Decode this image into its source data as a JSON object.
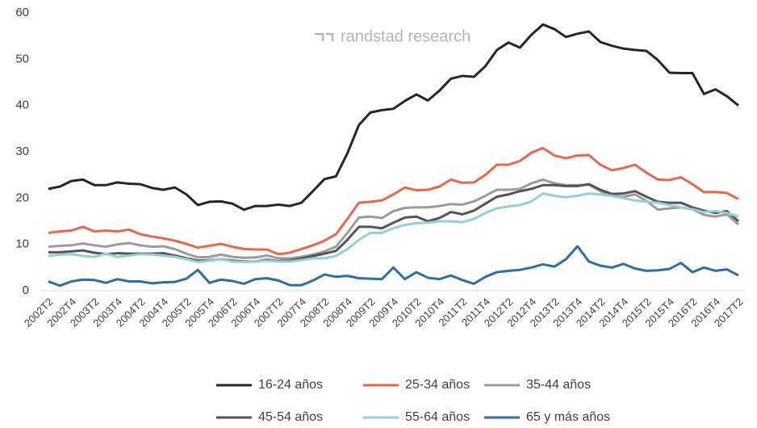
{
  "chart_data": {
    "type": "line",
    "annotation": "randstad research",
    "categories": [
      "2002T2",
      null,
      "2002T4",
      null,
      "2003T2",
      null,
      "2003T4",
      null,
      "2004T2",
      null,
      "2004T4",
      null,
      "2005T2",
      null,
      "2005T4",
      null,
      "2006T2",
      null,
      "2006T4",
      null,
      "2007T2",
      null,
      "2007T4",
      null,
      "2008T2",
      null,
      "2008T4",
      null,
      "2009T2",
      null,
      "2009T4",
      null,
      "2010T2",
      null,
      "2010T4",
      null,
      "2011T2",
      null,
      "2011T4",
      null,
      "2012T2",
      null,
      "2012T4",
      null,
      "2013T2",
      null,
      "2013T4",
      null,
      "2014T2",
      null,
      "2014T4",
      null,
      "2015T2",
      null,
      "2015T4",
      null,
      "2016T2",
      null,
      "2016T4",
      null,
      "2017T2"
    ],
    "ylim": [
      0,
      60
    ],
    "yticks": [
      0,
      10,
      20,
      30,
      40,
      50,
      60
    ],
    "grid": false,
    "legend": "bottom",
    "series": [
      {
        "name": "16-24 años",
        "color": "#262626",
        "values": [
          22,
          22.5,
          23.7,
          24,
          22.8,
          22.8,
          23.4,
          23.1,
          23,
          22.2,
          21.8,
          22.3,
          20.8,
          18.5,
          19.2,
          19.3,
          18.8,
          17.5,
          18.3,
          18.3,
          18.6,
          18.3,
          19,
          21.5,
          24.1,
          24.7,
          29.7,
          35.8,
          38.5,
          39,
          39.3,
          41,
          42.4,
          41.1,
          43.2,
          45.8,
          46.4,
          46.2,
          48.5,
          52,
          53.6,
          52.5,
          55.3,
          57.5,
          56.5,
          54.8,
          55.5,
          56,
          53.7,
          52.9,
          52.3,
          52,
          51.8,
          49.8,
          47.1,
          47,
          47,
          42.5,
          43.5,
          42,
          40
        ]
      },
      {
        "name": "25-34 años",
        "color": "#e8664a",
        "values": [
          12.5,
          12.8,
          13,
          13.8,
          12.8,
          13,
          12.8,
          13.2,
          12.2,
          11.7,
          11.3,
          10.8,
          10.1,
          9.3,
          9.7,
          10.1,
          9.5,
          9,
          8.9,
          8.9,
          7.9,
          8.2,
          9,
          9.8,
          10.8,
          12.2,
          15.5,
          19,
          19.2,
          19.5,
          20.8,
          22.3,
          21.7,
          21.8,
          22.5,
          24,
          23.3,
          23.4,
          25,
          27.2,
          27.2,
          28,
          29.8,
          30.8,
          29.2,
          28.6,
          29.2,
          29.3,
          27.2,
          26,
          26.5,
          27.2,
          25.5,
          24,
          23.9,
          24.5,
          23,
          21.3,
          21.3,
          21.1,
          19.8
        ]
      },
      {
        "name": "35-44 años",
        "color": "#9b9b9b",
        "values": [
          9.5,
          9.7,
          9.8,
          10.2,
          9.8,
          9.5,
          10,
          10.3,
          9.8,
          9.5,
          9.6,
          9,
          8,
          7.2,
          7.3,
          7.8,
          7.3,
          7.1,
          7.2,
          7.6,
          7,
          7,
          7.3,
          7.8,
          8.5,
          9.5,
          12.5,
          15.8,
          16,
          15.7,
          17.2,
          17.9,
          18,
          18,
          18.3,
          18.7,
          18.6,
          19.3,
          20.5,
          21.8,
          21.8,
          22,
          23.2,
          24,
          23.2,
          22.8,
          22.8,
          22.9,
          21.5,
          20.5,
          20.3,
          20.8,
          19.4,
          17.5,
          17.8,
          18,
          17.6,
          16.4,
          16,
          16.5,
          14.3
        ]
      },
      {
        "name": "45-54 años",
        "color": "#555555",
        "values": [
          8.3,
          8.3,
          8.5,
          8.7,
          8.2,
          7.9,
          8.1,
          8,
          8,
          8,
          8.1,
          7.6,
          7,
          6.5,
          6.6,
          6.8,
          6.5,
          6.3,
          6.3,
          6.7,
          6.4,
          6.5,
          7,
          7.5,
          8,
          8.6,
          11,
          13.8,
          13.8,
          13.5,
          14.7,
          15.8,
          16,
          15,
          15.7,
          17,
          16.5,
          17.3,
          18.8,
          20.3,
          20.8,
          21.5,
          22,
          22.8,
          22.8,
          22.6,
          22.6,
          23,
          21.8,
          20.9,
          21,
          21.5,
          20.3,
          19.2,
          19,
          19,
          18,
          17.3,
          16.8,
          17.2,
          15
        ]
      },
      {
        "name": "55-64 años",
        "color": "#92d0d9",
        "values": [
          7.5,
          7.8,
          7.9,
          7.5,
          7.3,
          8,
          7.3,
          7.6,
          7.9,
          7.8,
          7.6,
          7.3,
          6.8,
          6.2,
          6.5,
          6.8,
          6.3,
          6.2,
          6.3,
          6.5,
          6.3,
          6.3,
          6.6,
          7,
          7,
          7.5,
          9,
          11,
          12.5,
          12.5,
          13.5,
          14.2,
          14.6,
          14.7,
          15,
          15,
          14.8,
          15.5,
          16.8,
          17.8,
          18.2,
          18.5,
          19.3,
          21,
          20.5,
          20.2,
          20.5,
          21,
          20.8,
          20.5,
          20,
          19.5,
          19.2,
          19,
          18.5,
          18,
          17.6,
          17,
          17.2,
          16.8,
          16
        ]
      },
      {
        "name": "65 y más años",
        "color": "#2f6da6",
        "values": [
          2,
          1.1,
          2,
          2.4,
          2.3,
          1.7,
          2.5,
          2,
          2,
          1.6,
          1.8,
          1.9,
          2.6,
          4.5,
          1.7,
          2.4,
          2.1,
          1.5,
          2.5,
          2.7,
          2.2,
          1.2,
          1.2,
          2.2,
          3.5,
          3,
          3.2,
          2.7,
          2.6,
          2.5,
          5,
          2.5,
          4,
          2.8,
          2.5,
          3.3,
          2.3,
          1.5,
          3,
          4,
          4.3,
          4.5,
          5,
          5.7,
          5.2,
          6.8,
          9.6,
          6.3,
          5.4,
          5,
          5.8,
          4.8,
          4.3,
          4.4,
          4.7,
          6,
          4,
          5,
          4.3,
          4.6,
          3.3
        ]
      }
    ]
  }
}
